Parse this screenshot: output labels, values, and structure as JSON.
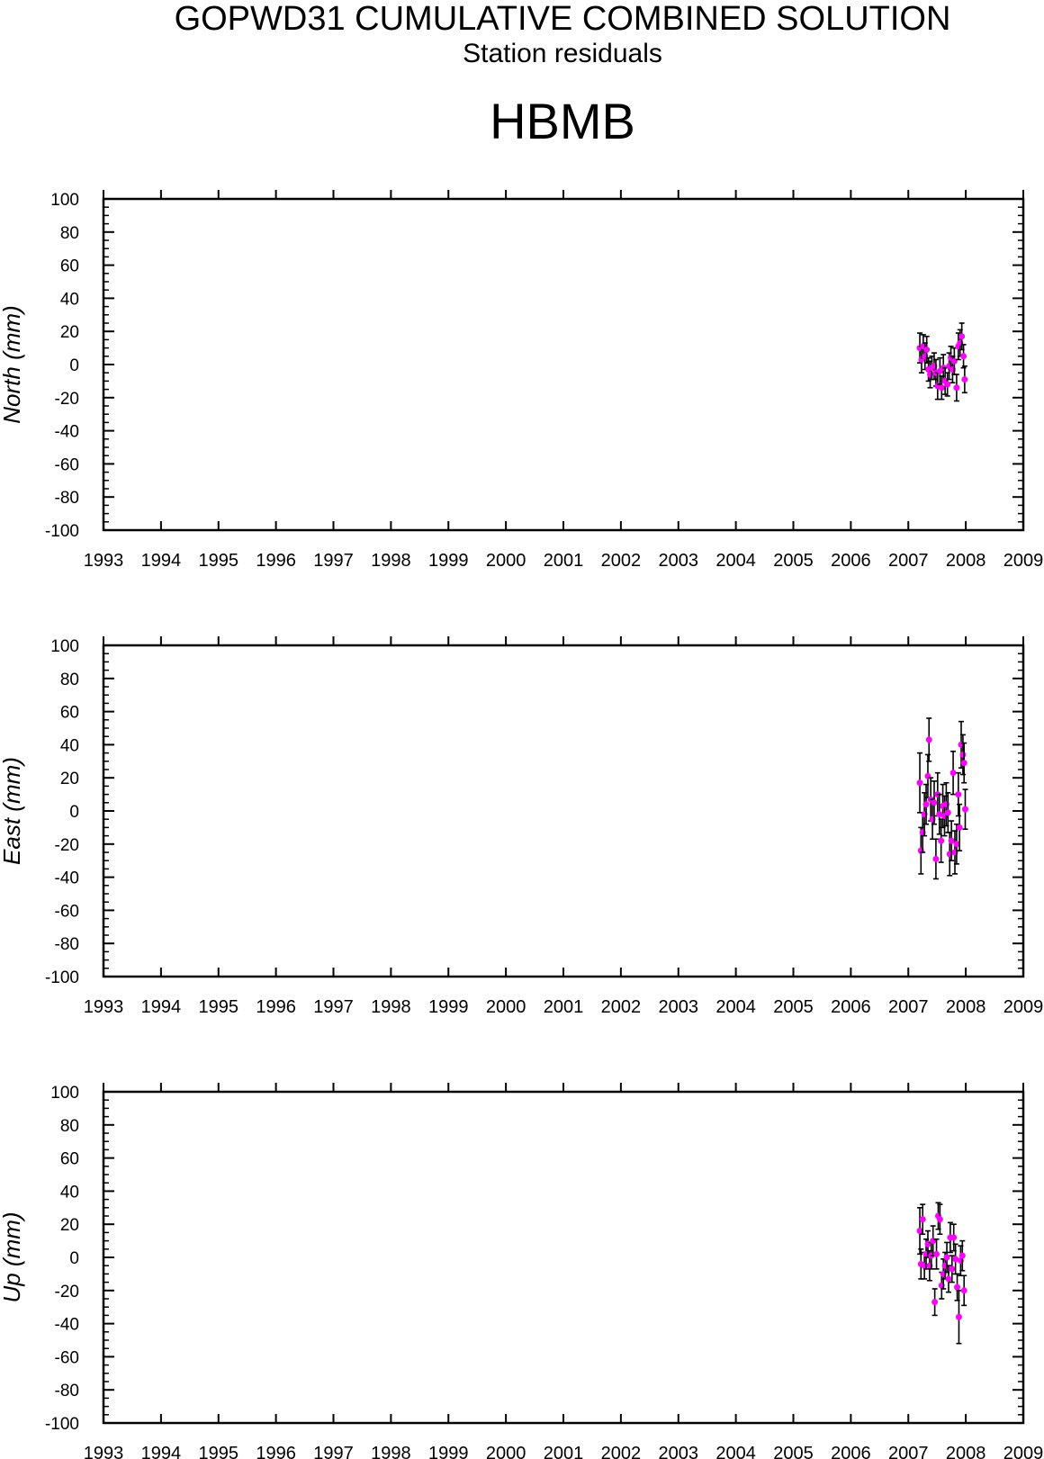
{
  "title": "GOPWD31 CUMULATIVE COMBINED SOLUTION",
  "subtitle": "Station residuals",
  "station": "HBMB",
  "colors": {
    "point": "#ff00ff",
    "errorbar": "#000000",
    "axis": "#000000"
  },
  "chart_data": [
    {
      "type": "scatter",
      "ylabel": "North (mm)",
      "xlim": [
        1993,
        2009
      ],
      "ylim": [
        -100,
        100
      ],
      "xticks": [
        "1993",
        "1994",
        "1995",
        "1996",
        "1997",
        "1998",
        "1999",
        "2000",
        "2001",
        "2002",
        "2003",
        "2004",
        "2005",
        "2006",
        "2007",
        "2008",
        "2009"
      ],
      "yticks": [
        "100",
        "80",
        "60",
        "40",
        "20",
        "0",
        "-20",
        "-40",
        "-60",
        "-80",
        "-100"
      ],
      "grid": false,
      "points": [
        {
          "x": 2007.2,
          "y": 10,
          "err": 9
        },
        {
          "x": 2007.23,
          "y": 3,
          "err": 8
        },
        {
          "x": 2007.26,
          "y": 11,
          "err": 7
        },
        {
          "x": 2007.29,
          "y": 5,
          "err": 8
        },
        {
          "x": 2007.32,
          "y": 9,
          "err": 8
        },
        {
          "x": 2007.35,
          "y": -3,
          "err": 7
        },
        {
          "x": 2007.38,
          "y": -6,
          "err": 8
        },
        {
          "x": 2007.41,
          "y": -2,
          "err": 7
        },
        {
          "x": 2007.45,
          "y": -1,
          "err": 8
        },
        {
          "x": 2007.48,
          "y": -5,
          "err": 8
        },
        {
          "x": 2007.51,
          "y": -13,
          "err": 8
        },
        {
          "x": 2007.55,
          "y": -4,
          "err": 8
        },
        {
          "x": 2007.58,
          "y": -14,
          "err": 7
        },
        {
          "x": 2007.61,
          "y": -2,
          "err": 8
        },
        {
          "x": 2007.64,
          "y": -10,
          "err": 8
        },
        {
          "x": 2007.68,
          "y": -12,
          "err": 7
        },
        {
          "x": 2007.71,
          "y": -1,
          "err": 8
        },
        {
          "x": 2007.74,
          "y": 4,
          "err": 7
        },
        {
          "x": 2007.77,
          "y": -3,
          "err": 8
        },
        {
          "x": 2007.8,
          "y": 2,
          "err": 8
        },
        {
          "x": 2007.84,
          "y": -14,
          "err": 8
        },
        {
          "x": 2007.87,
          "y": 11,
          "err": 8
        },
        {
          "x": 2007.9,
          "y": 13,
          "err": 8
        },
        {
          "x": 2007.93,
          "y": 17,
          "err": 8
        },
        {
          "x": 2007.96,
          "y": 5,
          "err": 7
        },
        {
          "x": 2007.98,
          "y": -9,
          "err": 8
        }
      ]
    },
    {
      "type": "scatter",
      "ylabel": "East (mm)",
      "xlim": [
        1993,
        2009
      ],
      "ylim": [
        -100,
        100
      ],
      "xticks": [
        "1993",
        "1994",
        "1995",
        "1996",
        "1997",
        "1998",
        "1999",
        "2000",
        "2001",
        "2002",
        "2003",
        "2004",
        "2005",
        "2006",
        "2007",
        "2008",
        "2009"
      ],
      "yticks": [
        "100",
        "80",
        "60",
        "40",
        "20",
        "0",
        "-20",
        "-40",
        "-60",
        "-80",
        "-100"
      ],
      "grid": false,
      "points": [
        {
          "x": 2007.2,
          "y": 17,
          "err": 18
        },
        {
          "x": 2007.22,
          "y": -24,
          "err": 14
        },
        {
          "x": 2007.25,
          "y": -13,
          "err": 12
        },
        {
          "x": 2007.28,
          "y": -2,
          "err": 13
        },
        {
          "x": 2007.31,
          "y": 4,
          "err": 12
        },
        {
          "x": 2007.34,
          "y": 21,
          "err": 13
        },
        {
          "x": 2007.36,
          "y": 43,
          "err": 13
        },
        {
          "x": 2007.39,
          "y": 7,
          "err": 13
        },
        {
          "x": 2007.42,
          "y": -5,
          "err": 12
        },
        {
          "x": 2007.45,
          "y": 5,
          "err": 13
        },
        {
          "x": 2007.48,
          "y": -29,
          "err": 12
        },
        {
          "x": 2007.51,
          "y": 10,
          "err": 13
        },
        {
          "x": 2007.54,
          "y": -2,
          "err": 12
        },
        {
          "x": 2007.57,
          "y": -18,
          "err": 13
        },
        {
          "x": 2007.6,
          "y": 3,
          "err": 13
        },
        {
          "x": 2007.63,
          "y": -3,
          "err": 12
        },
        {
          "x": 2007.66,
          "y": 4,
          "err": 13
        },
        {
          "x": 2007.69,
          "y": -1,
          "err": 12
        },
        {
          "x": 2007.72,
          "y": -26,
          "err": 13
        },
        {
          "x": 2007.75,
          "y": -18,
          "err": 12
        },
        {
          "x": 2007.78,
          "y": 23,
          "err": 13
        },
        {
          "x": 2007.81,
          "y": -25,
          "err": 13
        },
        {
          "x": 2007.84,
          "y": -20,
          "err": 12
        },
        {
          "x": 2007.87,
          "y": 10,
          "err": 13
        },
        {
          "x": 2007.89,
          "y": -10,
          "err": 14
        },
        {
          "x": 2007.92,
          "y": 40,
          "err": 14
        },
        {
          "x": 2007.95,
          "y": 34,
          "err": 12
        },
        {
          "x": 2007.97,
          "y": 29,
          "err": 12
        },
        {
          "x": 2007.99,
          "y": 1,
          "err": 12
        }
      ]
    },
    {
      "type": "scatter",
      "ylabel": "Up (mm)",
      "xlim": [
        1993,
        2009
      ],
      "ylim": [
        -100,
        100
      ],
      "xticks": [
        "1993",
        "1994",
        "1995",
        "1996",
        "1997",
        "1998",
        "1999",
        "2000",
        "2001",
        "2002",
        "2003",
        "2004",
        "2005",
        "2006",
        "2007",
        "2008",
        "2009"
      ],
      "yticks": [
        "100",
        "80",
        "60",
        "40",
        "20",
        "0",
        "-20",
        "-40",
        "-60",
        "-80",
        "-100"
      ],
      "grid": false,
      "points": [
        {
          "x": 2007.2,
          "y": 16,
          "err": 14
        },
        {
          "x": 2007.22,
          "y": -4,
          "err": 9
        },
        {
          "x": 2007.25,
          "y": 23,
          "err": 9
        },
        {
          "x": 2007.28,
          "y": -5,
          "err": 8
        },
        {
          "x": 2007.31,
          "y": 2,
          "err": 9
        },
        {
          "x": 2007.34,
          "y": 8,
          "err": 8
        },
        {
          "x": 2007.37,
          "y": -5,
          "err": 9
        },
        {
          "x": 2007.4,
          "y": 1,
          "err": 8
        },
        {
          "x": 2007.43,
          "y": 10,
          "err": 9
        },
        {
          "x": 2007.46,
          "y": -27,
          "err": 8
        },
        {
          "x": 2007.49,
          "y": 2,
          "err": 9
        },
        {
          "x": 2007.52,
          "y": 25,
          "err": 8
        },
        {
          "x": 2007.55,
          "y": 23,
          "err": 9
        },
        {
          "x": 2007.58,
          "y": -17,
          "err": 8
        },
        {
          "x": 2007.61,
          "y": -10,
          "err": 9
        },
        {
          "x": 2007.64,
          "y": -5,
          "err": 8
        },
        {
          "x": 2007.67,
          "y": 0,
          "err": 9
        },
        {
          "x": 2007.7,
          "y": -13,
          "err": 8
        },
        {
          "x": 2007.73,
          "y": 12,
          "err": 9
        },
        {
          "x": 2007.76,
          "y": -7,
          "err": 8
        },
        {
          "x": 2007.79,
          "y": 12,
          "err": 8
        },
        {
          "x": 2007.82,
          "y": -1,
          "err": 9
        },
        {
          "x": 2007.85,
          "y": -18,
          "err": 8
        },
        {
          "x": 2007.88,
          "y": -36,
          "err": 16
        },
        {
          "x": 2007.91,
          "y": -2,
          "err": 9
        },
        {
          "x": 2007.94,
          "y": 1,
          "err": 9
        },
        {
          "x": 2007.97,
          "y": -20,
          "err": 9
        }
      ]
    }
  ]
}
